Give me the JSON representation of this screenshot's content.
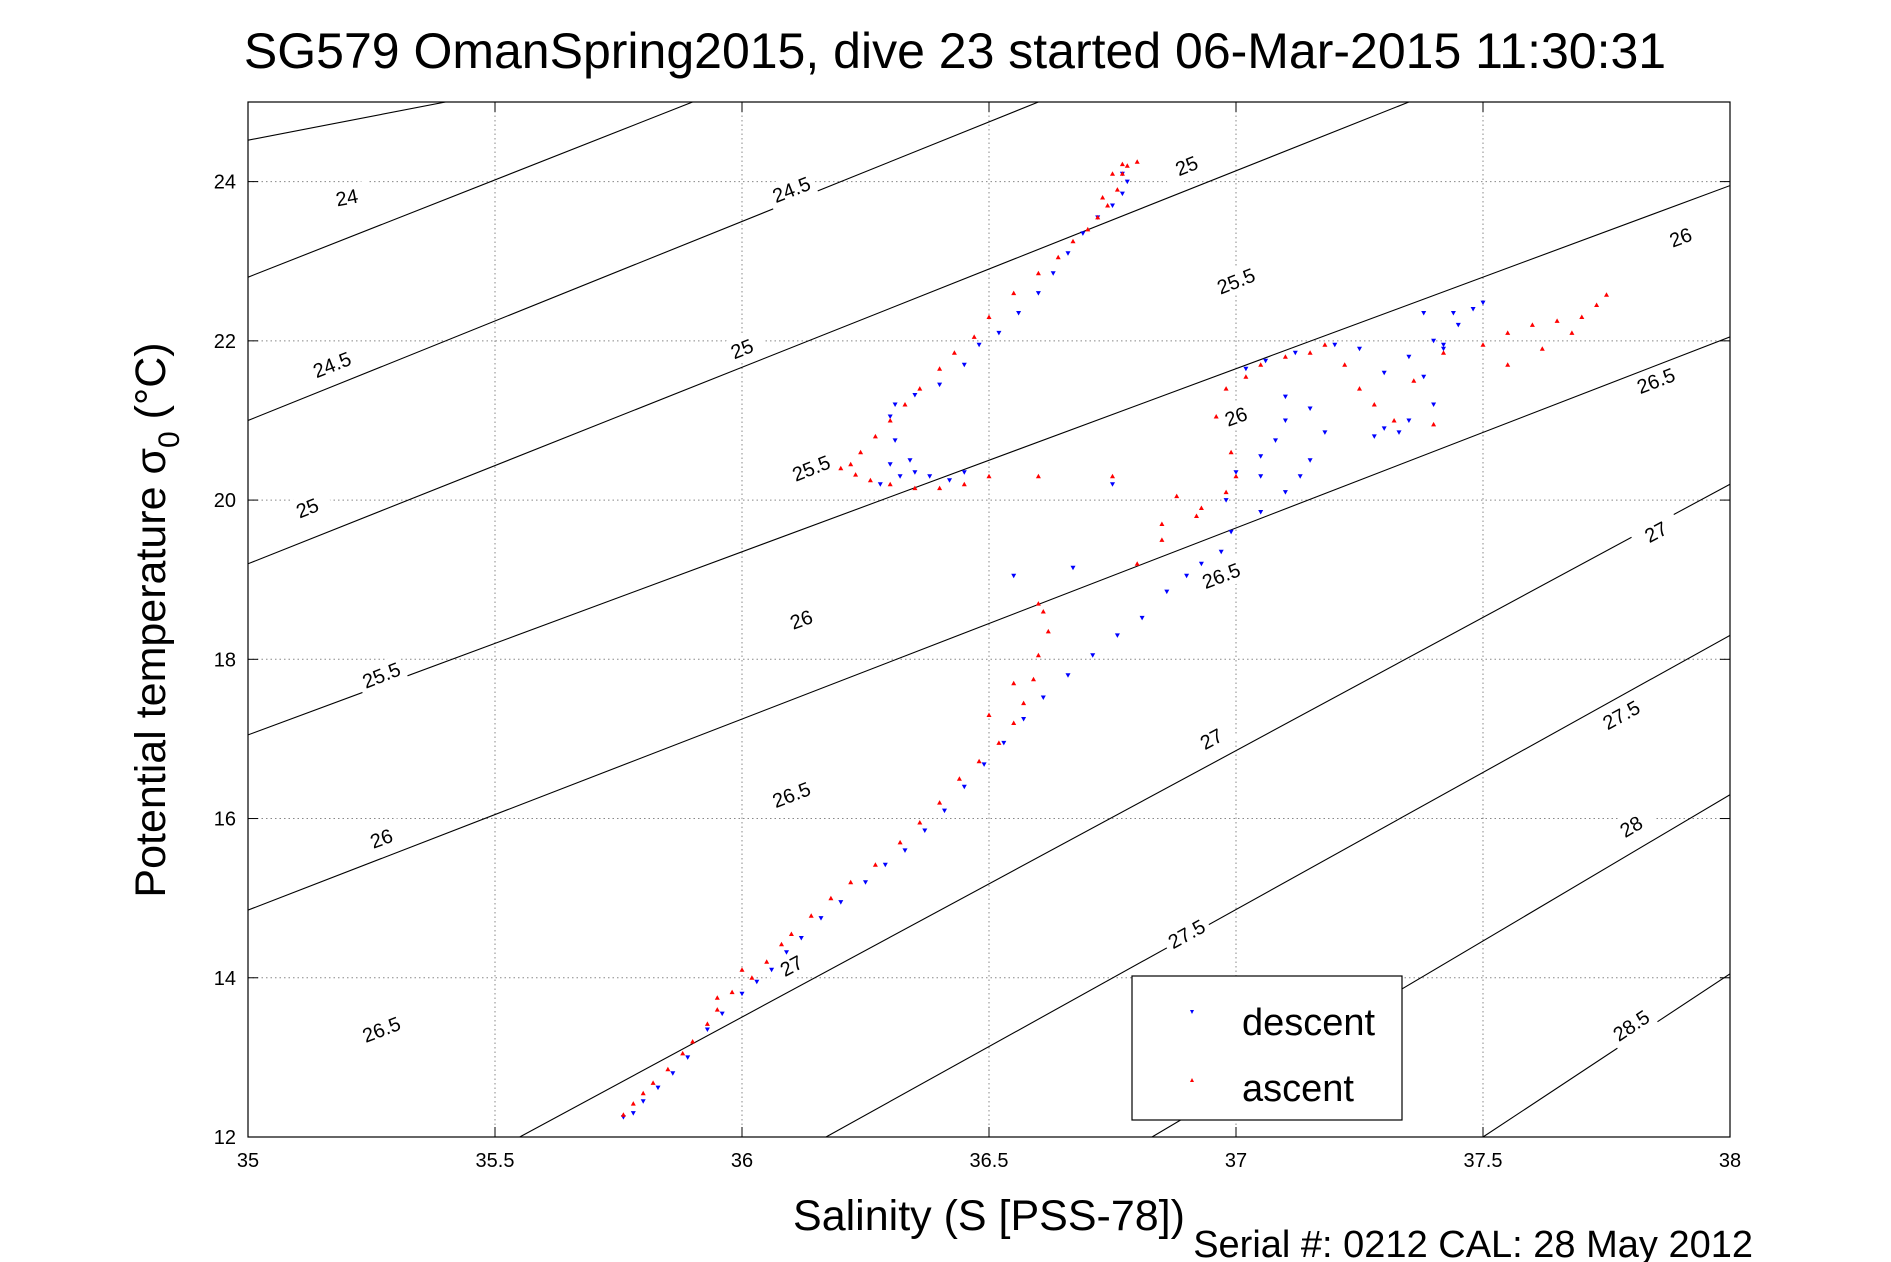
{
  "chart_data": {
    "type": "scatter",
    "title": "SG579 OmanSpring2015, dive 23 started 06-Mar-2015 11:30:31",
    "xlabel": "Salinity (S [PSS-78])",
    "ylabel_main": "Potential temperature σ",
    "ylabel_sub": "0",
    "ylabel_unit": " (°C)",
    "xlim": [
      35,
      38
    ],
    "ylim": [
      12,
      25
    ],
    "xticks": [
      35,
      35.5,
      36,
      36.5,
      37,
      37.5,
      38
    ],
    "xtick_labels": [
      "35",
      "35.5",
      "36",
      "36.5",
      "37",
      "37.5",
      "38"
    ],
    "yticks": [
      12,
      14,
      16,
      18,
      20,
      22,
      24
    ],
    "ytick_labels": [
      "12",
      "14",
      "16",
      "18",
      "20",
      "22",
      "24"
    ],
    "grid": true,
    "legend_position": "bottom-right",
    "footer": "Serial #: 0212  CAL: 28 May 2012",
    "contour_lines": [
      {
        "level": "24",
        "points": [
          [
            35,
            24.52
          ],
          [
            35.4,
            25.0
          ]
        ],
        "labels": [
          {
            "x": 35.2,
            "y": 23.8
          }
        ]
      },
      {
        "level": "24.5",
        "points": [
          [
            35,
            22.8
          ],
          [
            35.9,
            25.0
          ]
        ],
        "labels": [
          {
            "x": 35.17,
            "y": 21.7
          },
          {
            "x": 36.1,
            "y": 23.9
          }
        ]
      },
      {
        "level": "25",
        "points": [
          [
            35,
            21.0
          ],
          [
            36.6,
            25.0
          ]
        ],
        "labels": [
          {
            "x": 35.12,
            "y": 19.9
          },
          {
            "x": 36.0,
            "y": 21.9
          },
          {
            "x": 36.9,
            "y": 24.2
          }
        ]
      },
      {
        "level": "25.5",
        "points": [
          [
            35,
            19.2
          ],
          [
            37.35,
            25.0
          ]
        ],
        "labels": [
          {
            "x": 35.27,
            "y": 17.8
          },
          {
            "x": 36.14,
            "y": 20.4
          },
          {
            "x": 37.0,
            "y": 22.75
          }
        ]
      },
      {
        "level": "26",
        "points": [
          [
            35,
            17.05
          ],
          [
            38,
            23.95
          ]
        ],
        "labels": [
          {
            "x": 35.27,
            "y": 15.75
          },
          {
            "x": 36.12,
            "y": 18.5
          },
          {
            "x": 37.0,
            "y": 21.05
          },
          {
            "x": 37.9,
            "y": 23.3
          }
        ]
      },
      {
        "level": "26.5",
        "points": [
          [
            35,
            14.85
          ],
          [
            38,
            22.05
          ]
        ],
        "labels": [
          {
            "x": 35.27,
            "y": 13.35
          },
          {
            "x": 36.1,
            "y": 16.3
          },
          {
            "x": 36.97,
            "y": 19.05
          },
          {
            "x": 37.85,
            "y": 21.5
          }
        ]
      },
      {
        "level": "27",
        "points": [
          [
            35.55,
            12.0
          ],
          [
            38,
            20.2
          ]
        ],
        "labels": [
          {
            "x": 36.1,
            "y": 14.15
          },
          {
            "x": 36.95,
            "y": 17.0
          },
          {
            "x": 37.85,
            "y": 19.6
          }
        ]
      },
      {
        "level": "27.5",
        "points": [
          [
            36.17,
            12.0
          ],
          [
            38,
            18.3
          ]
        ],
        "labels": [
          {
            "x": 36.9,
            "y": 14.55
          },
          {
            "x": 37.78,
            "y": 17.3
          }
        ]
      },
      {
        "level": "28",
        "points": [
          [
            36.83,
            12.0
          ],
          [
            38,
            16.3
          ]
        ],
        "labels": [
          {
            "x": 37.8,
            "y": 15.9
          }
        ]
      },
      {
        "level": "28.5",
        "points": [
          [
            37.5,
            12.0
          ],
          [
            38,
            14.05
          ]
        ],
        "labels": [
          {
            "x": 37.8,
            "y": 13.4
          }
        ]
      }
    ],
    "series": [
      {
        "name": "descent",
        "color": "#0000ff",
        "marker": "triangle-down",
        "points": [
          [
            35.76,
            12.25
          ],
          [
            35.78,
            12.3
          ],
          [
            35.8,
            12.45
          ],
          [
            35.83,
            12.62
          ],
          [
            35.86,
            12.8
          ],
          [
            35.89,
            13.0
          ],
          [
            35.93,
            13.35
          ],
          [
            35.96,
            13.55
          ],
          [
            36.0,
            13.8
          ],
          [
            36.03,
            13.95
          ],
          [
            36.06,
            14.1
          ],
          [
            36.09,
            14.32
          ],
          [
            36.12,
            14.5
          ],
          [
            36.16,
            14.75
          ],
          [
            36.2,
            14.95
          ],
          [
            36.25,
            15.2
          ],
          [
            36.29,
            15.42
          ],
          [
            36.33,
            15.6
          ],
          [
            36.37,
            15.85
          ],
          [
            36.41,
            16.1
          ],
          [
            36.45,
            16.4
          ],
          [
            36.49,
            16.68
          ],
          [
            36.53,
            16.95
          ],
          [
            36.57,
            17.25
          ],
          [
            36.61,
            17.52
          ],
          [
            36.66,
            17.8
          ],
          [
            36.71,
            18.05
          ],
          [
            36.76,
            18.3
          ],
          [
            36.81,
            18.52
          ],
          [
            36.86,
            18.85
          ],
          [
            36.9,
            19.05
          ],
          [
            36.93,
            19.2
          ],
          [
            36.97,
            19.35
          ],
          [
            36.99,
            19.6
          ],
          [
            36.98,
            20.0
          ],
          [
            37.0,
            20.35
          ],
          [
            37.05,
            20.55
          ],
          [
            37.08,
            20.75
          ],
          [
            37.1,
            21.0
          ],
          [
            37.15,
            21.15
          ],
          [
            37.18,
            20.85
          ],
          [
            37.1,
            21.3
          ],
          [
            37.02,
            21.65
          ],
          [
            37.06,
            21.75
          ],
          [
            37.12,
            21.85
          ],
          [
            37.2,
            21.95
          ],
          [
            37.25,
            21.9
          ],
          [
            37.3,
            21.6
          ],
          [
            37.35,
            21.8
          ],
          [
            37.38,
            21.55
          ],
          [
            37.4,
            21.2
          ],
          [
            37.35,
            21.0
          ],
          [
            37.33,
            20.85
          ],
          [
            37.3,
            20.9
          ],
          [
            37.28,
            20.8
          ],
          [
            37.42,
            21.9
          ],
          [
            37.45,
            22.2
          ],
          [
            37.48,
            22.4
          ],
          [
            37.5,
            22.48
          ],
          [
            37.44,
            22.35
          ],
          [
            37.4,
            22.0
          ],
          [
            37.42,
            21.95
          ],
          [
            37.38,
            22.35
          ],
          [
            37.05,
            19.85
          ],
          [
            37.1,
            20.1
          ],
          [
            37.13,
            20.3
          ],
          [
            37.15,
            20.5
          ],
          [
            36.75,
            20.2
          ],
          [
            36.67,
            19.15
          ],
          [
            36.55,
            19.05
          ],
          [
            37.05,
            20.3
          ],
          [
            36.28,
            20.2
          ],
          [
            36.32,
            20.3
          ],
          [
            36.34,
            20.5
          ],
          [
            36.31,
            20.75
          ],
          [
            36.3,
            21.05
          ],
          [
            36.31,
            21.2
          ],
          [
            36.35,
            21.32
          ],
          [
            36.4,
            21.45
          ],
          [
            36.45,
            21.7
          ],
          [
            36.48,
            21.95
          ],
          [
            36.52,
            22.1
          ],
          [
            36.56,
            22.35
          ],
          [
            36.6,
            22.6
          ],
          [
            36.63,
            22.85
          ],
          [
            36.66,
            23.1
          ],
          [
            36.69,
            23.35
          ],
          [
            36.72,
            23.55
          ],
          [
            36.75,
            23.7
          ],
          [
            36.77,
            23.85
          ],
          [
            36.78,
            24.0
          ],
          [
            36.77,
            24.1
          ],
          [
            36.38,
            20.3
          ],
          [
            36.42,
            20.25
          ],
          [
            36.45,
            20.35
          ],
          [
            36.3,
            20.45
          ],
          [
            36.35,
            20.35
          ]
        ]
      },
      {
        "name": "ascent",
        "color": "#ff0000",
        "marker": "triangle-up",
        "points": [
          [
            35.76,
            12.28
          ],
          [
            35.78,
            12.42
          ],
          [
            35.8,
            12.55
          ],
          [
            35.82,
            12.68
          ],
          [
            35.85,
            12.85
          ],
          [
            35.88,
            13.05
          ],
          [
            35.9,
            13.2
          ],
          [
            35.93,
            13.42
          ],
          [
            35.95,
            13.6
          ],
          [
            35.98,
            13.82
          ],
          [
            36.02,
            14.0
          ],
          [
            36.05,
            14.2
          ],
          [
            36.08,
            14.42
          ],
          [
            36.1,
            14.55
          ],
          [
            36.14,
            14.78
          ],
          [
            36.18,
            15.0
          ],
          [
            36.22,
            15.2
          ],
          [
            36.27,
            15.42
          ],
          [
            36.32,
            15.7
          ],
          [
            36.36,
            15.95
          ],
          [
            36.4,
            16.2
          ],
          [
            36.44,
            16.5
          ],
          [
            36.48,
            16.72
          ],
          [
            36.52,
            16.95
          ],
          [
            36.55,
            17.2
          ],
          [
            36.57,
            17.45
          ],
          [
            36.59,
            17.75
          ],
          [
            36.6,
            18.05
          ],
          [
            36.62,
            18.35
          ],
          [
            36.61,
            18.6
          ],
          [
            36.6,
            18.7
          ],
          [
            36.55,
            17.7
          ],
          [
            36.5,
            17.3
          ],
          [
            35.95,
            13.75
          ],
          [
            36.0,
            14.1
          ],
          [
            36.8,
            19.2
          ],
          [
            36.85,
            19.5
          ],
          [
            36.92,
            19.8
          ],
          [
            36.98,
            20.1
          ],
          [
            37.0,
            20.3
          ],
          [
            36.99,
            20.6
          ],
          [
            36.96,
            21.05
          ],
          [
            36.98,
            21.4
          ],
          [
            37.02,
            21.55
          ],
          [
            37.05,
            21.7
          ],
          [
            37.1,
            21.8
          ],
          [
            37.15,
            21.85
          ],
          [
            37.18,
            21.95
          ],
          [
            37.22,
            21.7
          ],
          [
            37.25,
            21.4
          ],
          [
            37.28,
            21.2
          ],
          [
            37.32,
            21.0
          ],
          [
            37.4,
            20.95
          ],
          [
            37.36,
            21.5
          ],
          [
            37.42,
            21.85
          ],
          [
            37.5,
            21.95
          ],
          [
            37.55,
            22.1
          ],
          [
            37.6,
            22.2
          ],
          [
            37.65,
            22.25
          ],
          [
            37.7,
            22.3
          ],
          [
            37.73,
            22.45
          ],
          [
            37.75,
            22.58
          ],
          [
            37.68,
            22.1
          ],
          [
            37.62,
            21.9
          ],
          [
            37.55,
            21.7
          ],
          [
            36.93,
            19.9
          ],
          [
            36.88,
            20.05
          ],
          [
            36.85,
            19.7
          ],
          [
            36.75,
            20.3
          ],
          [
            36.6,
            20.3
          ],
          [
            36.5,
            20.3
          ],
          [
            36.45,
            20.2
          ],
          [
            36.4,
            20.15
          ],
          [
            36.35,
            20.15
          ],
          [
            36.3,
            20.2
          ],
          [
            36.26,
            20.25
          ],
          [
            36.23,
            20.32
          ],
          [
            36.22,
            20.45
          ],
          [
            36.24,
            20.6
          ],
          [
            36.27,
            20.8
          ],
          [
            36.3,
            21.0
          ],
          [
            36.33,
            21.2
          ],
          [
            36.36,
            21.4
          ],
          [
            36.4,
            21.65
          ],
          [
            36.43,
            21.85
          ],
          [
            36.47,
            22.05
          ],
          [
            36.5,
            22.3
          ],
          [
            36.55,
            22.6
          ],
          [
            36.6,
            22.85
          ],
          [
            36.64,
            23.05
          ],
          [
            36.67,
            23.25
          ],
          [
            36.7,
            23.4
          ],
          [
            36.72,
            23.55
          ],
          [
            36.74,
            23.7
          ],
          [
            36.76,
            23.9
          ],
          [
            36.77,
            24.1
          ],
          [
            36.78,
            24.2
          ],
          [
            36.8,
            24.25
          ],
          [
            36.77,
            24.22
          ],
          [
            36.75,
            24.1
          ],
          [
            36.73,
            23.8
          ],
          [
            36.2,
            20.4
          ]
        ]
      }
    ]
  }
}
